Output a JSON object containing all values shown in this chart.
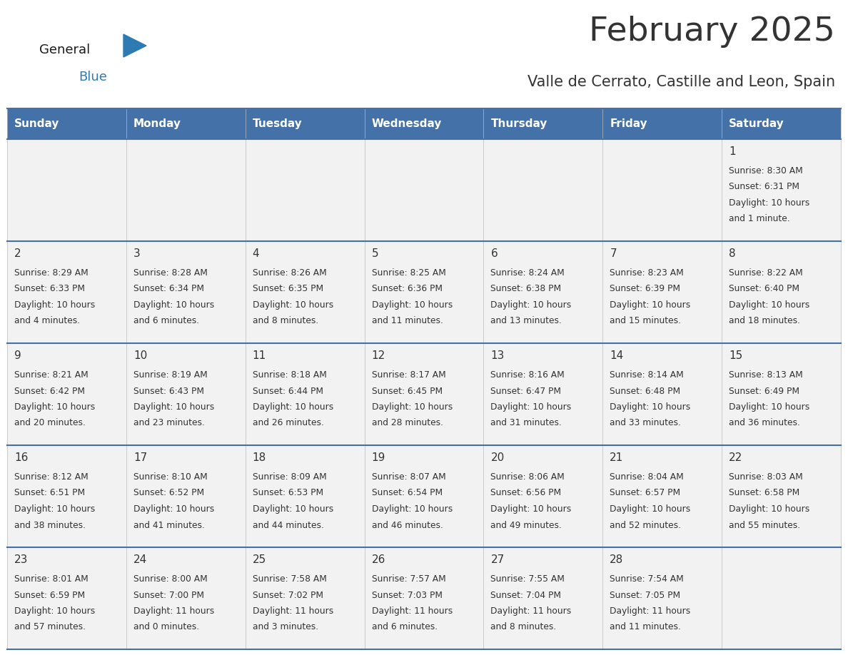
{
  "title": "February 2025",
  "subtitle": "Valle de Cerrato, Castille and Leon, Spain",
  "header_color": "#4472A8",
  "header_text_color": "#FFFFFF",
  "day_names": [
    "Sunday",
    "Monday",
    "Tuesday",
    "Wednesday",
    "Thursday",
    "Friday",
    "Saturday"
  ],
  "bg_color": "#FFFFFF",
  "cell_bg": "#F2F2F2",
  "divider_color": "#4472A8",
  "text_color": "#333333",
  "logo_general_color": "#1a1a1a",
  "logo_blue_color": "#2E7BB4",
  "days": [
    {
      "day": 1,
      "col": 6,
      "row": 0,
      "sunrise": "8:30 AM",
      "sunset": "6:31 PM",
      "daylight_line1": "Daylight: 10 hours",
      "daylight_line2": "and 1 minute."
    },
    {
      "day": 2,
      "col": 0,
      "row": 1,
      "sunrise": "8:29 AM",
      "sunset": "6:33 PM",
      "daylight_line1": "Daylight: 10 hours",
      "daylight_line2": "and 4 minutes."
    },
    {
      "day": 3,
      "col": 1,
      "row": 1,
      "sunrise": "8:28 AM",
      "sunset": "6:34 PM",
      "daylight_line1": "Daylight: 10 hours",
      "daylight_line2": "and 6 minutes."
    },
    {
      "day": 4,
      "col": 2,
      "row": 1,
      "sunrise": "8:26 AM",
      "sunset": "6:35 PM",
      "daylight_line1": "Daylight: 10 hours",
      "daylight_line2": "and 8 minutes."
    },
    {
      "day": 5,
      "col": 3,
      "row": 1,
      "sunrise": "8:25 AM",
      "sunset": "6:36 PM",
      "daylight_line1": "Daylight: 10 hours",
      "daylight_line2": "and 11 minutes."
    },
    {
      "day": 6,
      "col": 4,
      "row": 1,
      "sunrise": "8:24 AM",
      "sunset": "6:38 PM",
      "daylight_line1": "Daylight: 10 hours",
      "daylight_line2": "and 13 minutes."
    },
    {
      "day": 7,
      "col": 5,
      "row": 1,
      "sunrise": "8:23 AM",
      "sunset": "6:39 PM",
      "daylight_line1": "Daylight: 10 hours",
      "daylight_line2": "and 15 minutes."
    },
    {
      "day": 8,
      "col": 6,
      "row": 1,
      "sunrise": "8:22 AM",
      "sunset": "6:40 PM",
      "daylight_line1": "Daylight: 10 hours",
      "daylight_line2": "and 18 minutes."
    },
    {
      "day": 9,
      "col": 0,
      "row": 2,
      "sunrise": "8:21 AM",
      "sunset": "6:42 PM",
      "daylight_line1": "Daylight: 10 hours",
      "daylight_line2": "and 20 minutes."
    },
    {
      "day": 10,
      "col": 1,
      "row": 2,
      "sunrise": "8:19 AM",
      "sunset": "6:43 PM",
      "daylight_line1": "Daylight: 10 hours",
      "daylight_line2": "and 23 minutes."
    },
    {
      "day": 11,
      "col": 2,
      "row": 2,
      "sunrise": "8:18 AM",
      "sunset": "6:44 PM",
      "daylight_line1": "Daylight: 10 hours",
      "daylight_line2": "and 26 minutes."
    },
    {
      "day": 12,
      "col": 3,
      "row": 2,
      "sunrise": "8:17 AM",
      "sunset": "6:45 PM",
      "daylight_line1": "Daylight: 10 hours",
      "daylight_line2": "and 28 minutes."
    },
    {
      "day": 13,
      "col": 4,
      "row": 2,
      "sunrise": "8:16 AM",
      "sunset": "6:47 PM",
      "daylight_line1": "Daylight: 10 hours",
      "daylight_line2": "and 31 minutes."
    },
    {
      "day": 14,
      "col": 5,
      "row": 2,
      "sunrise": "8:14 AM",
      "sunset": "6:48 PM",
      "daylight_line1": "Daylight: 10 hours",
      "daylight_line2": "and 33 minutes."
    },
    {
      "day": 15,
      "col": 6,
      "row": 2,
      "sunrise": "8:13 AM",
      "sunset": "6:49 PM",
      "daylight_line1": "Daylight: 10 hours",
      "daylight_line2": "and 36 minutes."
    },
    {
      "day": 16,
      "col": 0,
      "row": 3,
      "sunrise": "8:12 AM",
      "sunset": "6:51 PM",
      "daylight_line1": "Daylight: 10 hours",
      "daylight_line2": "and 38 minutes."
    },
    {
      "day": 17,
      "col": 1,
      "row": 3,
      "sunrise": "8:10 AM",
      "sunset": "6:52 PM",
      "daylight_line1": "Daylight: 10 hours",
      "daylight_line2": "and 41 minutes."
    },
    {
      "day": 18,
      "col": 2,
      "row": 3,
      "sunrise": "8:09 AM",
      "sunset": "6:53 PM",
      "daylight_line1": "Daylight: 10 hours",
      "daylight_line2": "and 44 minutes."
    },
    {
      "day": 19,
      "col": 3,
      "row": 3,
      "sunrise": "8:07 AM",
      "sunset": "6:54 PM",
      "daylight_line1": "Daylight: 10 hours",
      "daylight_line2": "and 46 minutes."
    },
    {
      "day": 20,
      "col": 4,
      "row": 3,
      "sunrise": "8:06 AM",
      "sunset": "6:56 PM",
      "daylight_line1": "Daylight: 10 hours",
      "daylight_line2": "and 49 minutes."
    },
    {
      "day": 21,
      "col": 5,
      "row": 3,
      "sunrise": "8:04 AM",
      "sunset": "6:57 PM",
      "daylight_line1": "Daylight: 10 hours",
      "daylight_line2": "and 52 minutes."
    },
    {
      "day": 22,
      "col": 6,
      "row": 3,
      "sunrise": "8:03 AM",
      "sunset": "6:58 PM",
      "daylight_line1": "Daylight: 10 hours",
      "daylight_line2": "and 55 minutes."
    },
    {
      "day": 23,
      "col": 0,
      "row": 4,
      "sunrise": "8:01 AM",
      "sunset": "6:59 PM",
      "daylight_line1": "Daylight: 10 hours",
      "daylight_line2": "and 57 minutes."
    },
    {
      "day": 24,
      "col": 1,
      "row": 4,
      "sunrise": "8:00 AM",
      "sunset": "7:00 PM",
      "daylight_line1": "Daylight: 11 hours",
      "daylight_line2": "and 0 minutes."
    },
    {
      "day": 25,
      "col": 2,
      "row": 4,
      "sunrise": "7:58 AM",
      "sunset": "7:02 PM",
      "daylight_line1": "Daylight: 11 hours",
      "daylight_line2": "and 3 minutes."
    },
    {
      "day": 26,
      "col": 3,
      "row": 4,
      "sunrise": "7:57 AM",
      "sunset": "7:03 PM",
      "daylight_line1": "Daylight: 11 hours",
      "daylight_line2": "and 6 minutes."
    },
    {
      "day": 27,
      "col": 4,
      "row": 4,
      "sunrise": "7:55 AM",
      "sunset": "7:04 PM",
      "daylight_line1": "Daylight: 11 hours",
      "daylight_line2": "and 8 minutes."
    },
    {
      "day": 28,
      "col": 5,
      "row": 4,
      "sunrise": "7:54 AM",
      "sunset": "7:05 PM",
      "daylight_line1": "Daylight: 11 hours",
      "daylight_line2": "and 11 minutes."
    }
  ]
}
